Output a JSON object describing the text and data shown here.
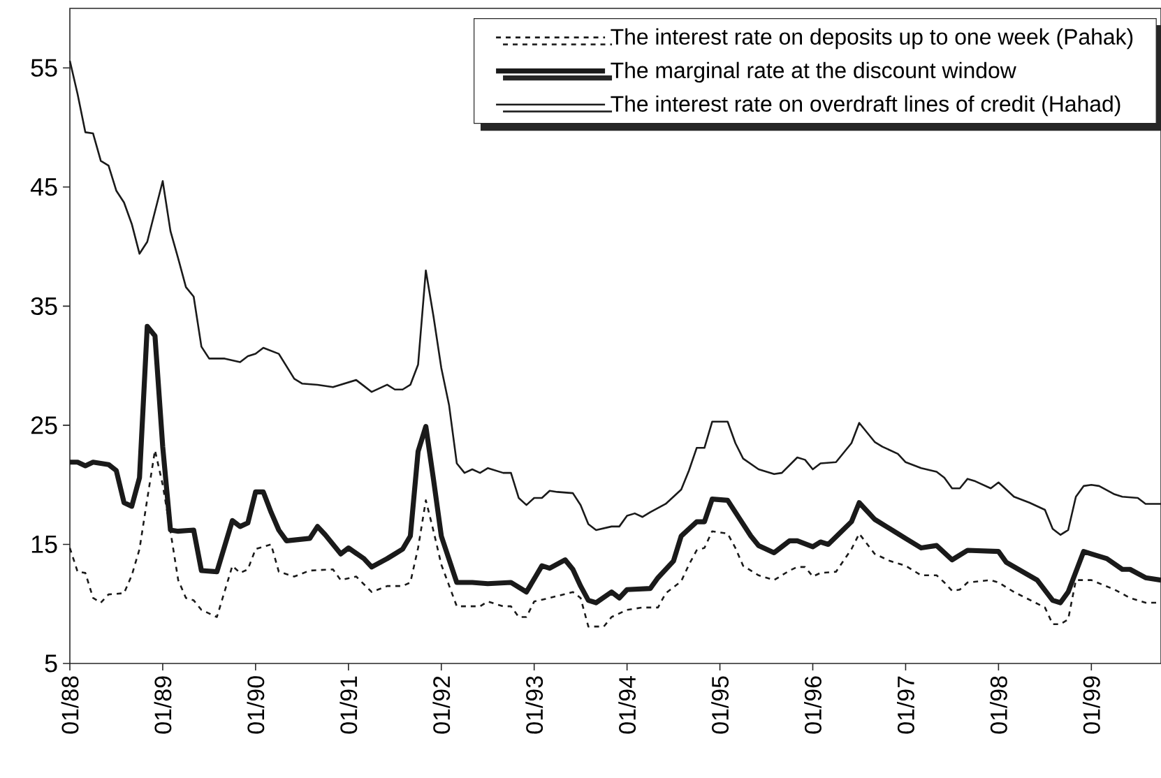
{
  "chart_data": {
    "type": "line",
    "xlim": [
      "1988-01",
      "1999-10"
    ],
    "xticks": [
      {
        "value": "1988-01",
        "label": "01/88"
      },
      {
        "value": "1989-01",
        "label": "01/89"
      },
      {
        "value": "1990-01",
        "label": "01/90"
      },
      {
        "value": "1991-01",
        "label": "01/91"
      },
      {
        "value": "1992-01",
        "label": "01/92"
      },
      {
        "value": "1993-01",
        "label": "01/93"
      },
      {
        "value": "1994-01",
        "label": "01/94"
      },
      {
        "value": "1995-01",
        "label": "01/95"
      },
      {
        "value": "1996-01",
        "label": "01/96"
      },
      {
        "value": "1997-01",
        "label": "01/97"
      },
      {
        "value": "1998-01",
        "label": "01/98"
      },
      {
        "value": "1999-01",
        "label": "01/99"
      }
    ],
    "ylim": [
      5,
      60
    ],
    "yticks": [
      5,
      15,
      25,
      35,
      45,
      55
    ],
    "legend": "top right",
    "series": [
      {
        "name": "The interest rate on deposits up to one week (Pahak)",
        "color": "#1a1a1a",
        "line_style": "dashed",
        "x": [
          "1988-01",
          "1988-02",
          "1988-03",
          "1988-04",
          "1988-05",
          "1988-06",
          "1988-08",
          "1988-09",
          "1988-10",
          "1988-11",
          "1988-12",
          "1989-01",
          "1989-02",
          "1989-03",
          "1989-04",
          "1989-05",
          "1989-06",
          "1989-08",
          "1989-10",
          "1989-11",
          "1989-12",
          "1990-01",
          "1990-03",
          "1990-04",
          "1990-06",
          "1990-08",
          "1990-11",
          "1990-12",
          "1991-02",
          "1991-04",
          "1991-06",
          "1991-08",
          "1991-09",
          "1991-10",
          "1991-11",
          "1991-12",
          "1992-01",
          "1992-03",
          "1992-06",
          "1992-07",
          "1992-09",
          "1992-10",
          "1992-11",
          "1992-12",
          "1993-01",
          "1993-03",
          "1993-06",
          "1993-07",
          "1993-08",
          "1993-10",
          "1993-11",
          "1994-01",
          "1994-03",
          "1994-05",
          "1994-06",
          "1994-08",
          "1994-09",
          "1994-10",
          "1994-11",
          "1994-12",
          "1995-02",
          "1995-03",
          "1995-04",
          "1995-06",
          "1995-08",
          "1995-10",
          "1995-11",
          "1995-12",
          "1996-01",
          "1996-02",
          "1996-04",
          "1996-06",
          "1996-07",
          "1996-09",
          "1996-11",
          "1997-01",
          "1997-03",
          "1997-05",
          "1997-06",
          "1997-07",
          "1997-08",
          "1997-09",
          "1997-12",
          "1998-01",
          "1998-03",
          "1998-07",
          "1998-08",
          "1998-09",
          "1998-10",
          "1998-11",
          "1999-01",
          "1999-04",
          "1999-06",
          "1999-08",
          "1999-10"
        ],
        "values": [
          14.7,
          12.7,
          12.6,
          10.5,
          10.1,
          10.8,
          10.9,
          12.4,
          14.6,
          18.8,
          22.9,
          20.0,
          16.1,
          12.0,
          10.5,
          10.3,
          9.5,
          8.9,
          13.2,
          12.6,
          12.9,
          14.6,
          15.0,
          12.7,
          12.3,
          12.8,
          12.9,
          12.0,
          12.3,
          11.0,
          11.5,
          11.5,
          11.8,
          14.7,
          18.7,
          16.1,
          13.3,
          9.8,
          9.8,
          10.2,
          9.8,
          9.8,
          8.9,
          8.9,
          10.2,
          10.5,
          11.0,
          10.5,
          8.1,
          8.1,
          8.9,
          9.5,
          9.7,
          9.7,
          10.9,
          11.9,
          13.3,
          14.5,
          14.7,
          16.1,
          15.9,
          14.7,
          13.2,
          12.4,
          12.0,
          12.8,
          13.1,
          13.1,
          12.3,
          12.6,
          12.7,
          14.6,
          15.9,
          14.2,
          13.6,
          13.2,
          12.4,
          12.4,
          11.8,
          11.1,
          11.2,
          11.8,
          12.0,
          11.8,
          11.0,
          9.7,
          8.3,
          8.3,
          8.7,
          12.0,
          12.0,
          11.2,
          10.5,
          10.1,
          10.1
        ]
      },
      {
        "name": "The marginal rate at the discount window",
        "color": "#1a1a1a",
        "line_style": "solid",
        "x": [
          "1988-01",
          "1988-02",
          "1988-03",
          "1988-04",
          "1988-06",
          "1988-07",
          "1988-08",
          "1988-09",
          "1988-10",
          "1988-11",
          "1988-12",
          "1989-01",
          "1989-02",
          "1989-03",
          "1989-05",
          "1989-06",
          "1989-08",
          "1989-10",
          "1989-11",
          "1989-12",
          "1990-01",
          "1990-02",
          "1990-03",
          "1990-04",
          "1990-05",
          "1990-08",
          "1990-09",
          "1990-10",
          "1990-12",
          "1991-01",
          "1991-03",
          "1991-04",
          "1991-06",
          "1991-07",
          "1991-08",
          "1991-09",
          "1991-10",
          "1991-11",
          "1991-12",
          "1992-01",
          "1992-03",
          "1992-05",
          "1992-07",
          "1992-10",
          "1992-12",
          "1993-02",
          "1993-03",
          "1993-05",
          "1993-06",
          "1993-07",
          "1993-08",
          "1993-09",
          "1993-11",
          "1993-12",
          "1994-01",
          "1994-04",
          "1994-05",
          "1994-07",
          "1994-08",
          "1994-10",
          "1994-11",
          "1994-12",
          "1995-02",
          "1995-03",
          "1995-05",
          "1995-06",
          "1995-08",
          "1995-10",
          "1995-11",
          "1996-01",
          "1996-02",
          "1996-03",
          "1996-06",
          "1996-07",
          "1996-09",
          "1996-11",
          "1997-01",
          "1997-03",
          "1997-05",
          "1997-07",
          "1997-09",
          "1998-01",
          "1998-02",
          "1998-06",
          "1998-08",
          "1998-09",
          "1998-10",
          "1998-12",
          "1999-01",
          "1999-03",
          "1999-05",
          "1999-06",
          "1999-08",
          "1999-10"
        ],
        "values": [
          21.9,
          21.9,
          21.6,
          21.9,
          21.7,
          21.2,
          18.5,
          18.2,
          20.6,
          33.3,
          32.5,
          23.2,
          16.2,
          16.1,
          16.2,
          12.8,
          12.7,
          17.0,
          16.5,
          16.8,
          19.4,
          19.4,
          17.7,
          16.2,
          15.3,
          15.5,
          16.5,
          15.8,
          14.2,
          14.7,
          13.8,
          13.1,
          13.8,
          14.2,
          14.6,
          15.7,
          22.8,
          24.9,
          20.4,
          15.7,
          11.8,
          11.8,
          11.7,
          11.8,
          11.0,
          13.2,
          13.0,
          13.7,
          12.9,
          11.5,
          10.3,
          10.1,
          11.0,
          10.5,
          11.2,
          11.3,
          12.2,
          13.6,
          15.7,
          16.9,
          16.9,
          18.8,
          18.7,
          17.7,
          15.7,
          14.9,
          14.3,
          15.3,
          15.3,
          14.8,
          15.2,
          15.0,
          16.9,
          18.5,
          17.1,
          16.3,
          15.5,
          14.7,
          14.9,
          13.7,
          14.5,
          14.4,
          13.5,
          12.0,
          10.3,
          10.1,
          11.0,
          14.4,
          14.2,
          13.8,
          12.9,
          12.9,
          12.2,
          12.0
        ]
      },
      {
        "name": "The interest rate on overdraft lines of credit (Hahad)",
        "color": "#1a1a1a",
        "line_style": "solid",
        "x": [
          "1988-01",
          "1988-02",
          "1988-03",
          "1988-04",
          "1988-05",
          "1988-06",
          "1988-07",
          "1988-08",
          "1988-09",
          "1988-10",
          "1988-11",
          "1989-01",
          "1989-02",
          "1989-03",
          "1989-04",
          "1989-05",
          "1989-06",
          "1989-07",
          "1989-09",
          "1989-11",
          "1989-12",
          "1990-01",
          "1990-02",
          "1990-04",
          "1990-06",
          "1990-07",
          "1990-09",
          "1990-11",
          "1991-02",
          "1991-03",
          "1991-04",
          "1991-06",
          "1991-07",
          "1991-08",
          "1991-09",
          "1991-10",
          "1991-11",
          "1991-12",
          "1992-01",
          "1992-02",
          "1992-03",
          "1992-04",
          "1992-05",
          "1992-06",
          "1992-07",
          "1992-09",
          "1992-10",
          "1992-11",
          "1992-12",
          "1993-01",
          "1993-02",
          "1993-03",
          "1993-04",
          "1993-06",
          "1993-07",
          "1993-08",
          "1993-09",
          "1993-11",
          "1993-12",
          "1994-01",
          "1994-02",
          "1994-03",
          "1994-04",
          "1994-06",
          "1994-08",
          "1994-09",
          "1994-10",
          "1994-11",
          "1994-12",
          "1995-02",
          "1995-03",
          "1995-04",
          "1995-06",
          "1995-08",
          "1995-09",
          "1995-11",
          "1995-12",
          "1996-01",
          "1996-02",
          "1996-04",
          "1996-06",
          "1996-07",
          "1996-09",
          "1996-10",
          "1996-12",
          "1997-01",
          "1997-03",
          "1997-05",
          "1997-06",
          "1997-07",
          "1997-08",
          "1997-09",
          "1997-10",
          "1997-12",
          "1998-01",
          "1998-03",
          "1998-05",
          "1998-07",
          "1998-08",
          "1998-09",
          "1998-10",
          "1998-11",
          "1998-12",
          "1999-01",
          "1999-02",
          "1999-04",
          "1999-05",
          "1999-07",
          "1999-08",
          "1999-10"
        ],
        "values": [
          55.6,
          52.8,
          49.6,
          49.5,
          47.2,
          46.8,
          44.7,
          43.7,
          41.9,
          39.4,
          40.4,
          45.5,
          41.3,
          39.0,
          36.6,
          35.8,
          31.6,
          30.6,
          30.6,
          30.3,
          30.8,
          31.0,
          31.5,
          31.0,
          28.9,
          28.5,
          28.4,
          28.2,
          28.8,
          28.3,
          27.8,
          28.4,
          28.0,
          28.0,
          28.4,
          30.1,
          38.0,
          34.1,
          29.8,
          26.7,
          21.8,
          21.0,
          21.3,
          21.0,
          21.4,
          21.0,
          21.0,
          18.9,
          18.3,
          18.9,
          18.9,
          19.5,
          19.4,
          19.3,
          18.3,
          16.7,
          16.2,
          16.5,
          16.5,
          17.4,
          17.6,
          17.3,
          17.7,
          18.4,
          19.6,
          21.2,
          23.1,
          23.1,
          25.3,
          25.3,
          23.5,
          22.2,
          21.3,
          20.9,
          21.0,
          22.3,
          22.1,
          21.3,
          21.8,
          21.9,
          23.5,
          25.2,
          23.6,
          23.2,
          22.6,
          21.9,
          21.4,
          21.1,
          20.6,
          19.7,
          19.7,
          20.5,
          20.3,
          19.7,
          20.2,
          19.0,
          18.5,
          17.9,
          16.3,
          15.8,
          16.2,
          19.0,
          19.9,
          20.0,
          19.9,
          19.2,
          19.0,
          18.9,
          18.4,
          18.4
        ]
      }
    ]
  }
}
